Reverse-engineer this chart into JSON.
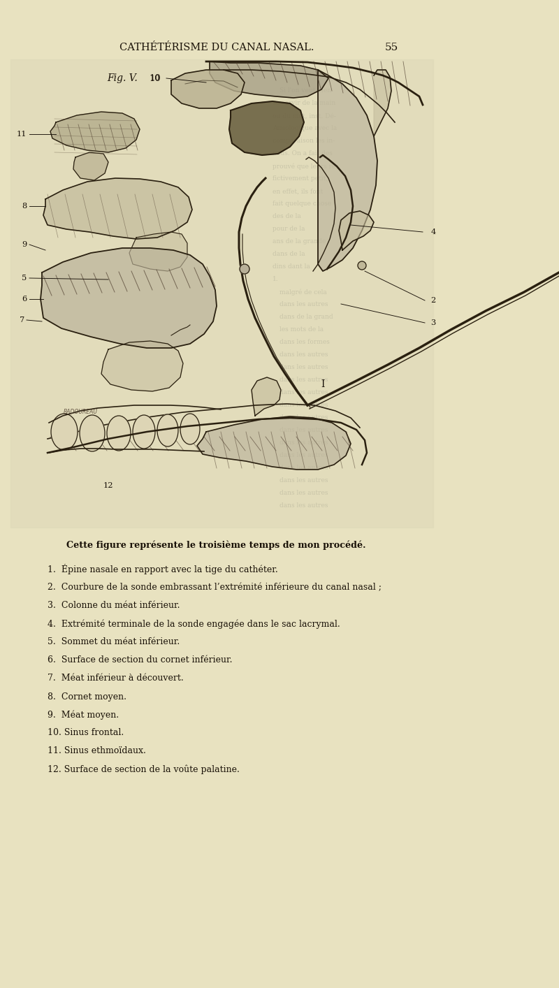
{
  "background_color": "#e8e2c0",
  "title": "CATHÉTÉRISME DU CANAL NASAL.",
  "title_fontsize": 10.5,
  "page_number": "55",
  "page_number_fontsize": 11,
  "fig_label": "Fig. V.",
  "fig_number": "10",
  "caption_intro": "Cette figure représente le troisième temps de mon procédé.",
  "caption_intro_fontsize": 9.2,
  "items": [
    "1.  Épine nasale en rapport avec la tige du cathéter.",
    "2.  Courbure de la sonde embrassant l’extrémité inférieure du canal nasal ;",
    "3.  Colonne du méat inférieur.",
    "4.  Extrémité terminale de la sonde engagée dans le sac lacrymal.",
    "5.  Sommet du méat inférieur.",
    "6.  Surface de section du cornet inférieur.",
    "7.  Méat inférieur à découvert.",
    "8.  Cornet moyen.",
    "9.  Méat moyen.",
    "10. Sinus frontal.",
    "11. Sinus ethmoïdaux.",
    "12. Surface de section de la voûte palatine."
  ],
  "item_fontsize": 9.0,
  "text_color": "#1a1208",
  "dark_line": "#2a2010",
  "mid_tone": "#7a7060",
  "light_tone": "#c8c0a0",
  "ann_color": "#181008",
  "ann_lw": 0.65,
  "ann_fs": 8.2
}
